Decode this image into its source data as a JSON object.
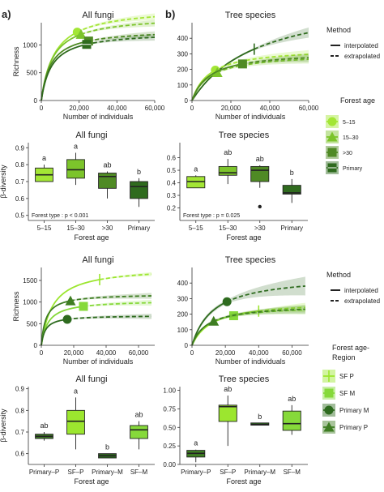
{
  "panel_labels": {
    "a": "a)",
    "b": "b)"
  },
  "legends": {
    "method": {
      "title": "Method",
      "items": [
        "interpolated",
        "extrapolated"
      ]
    },
    "forest_age": {
      "title": "Forest age",
      "items": [
        "5–15",
        "15–30",
        ">30",
        "Primary"
      ]
    },
    "forest_age_region": {
      "title": "Forest age-\nRegion",
      "items": [
        "SF P",
        "SF M",
        "Primary M",
        "Primary P"
      ]
    }
  },
  "colors": {
    "a5_15": "#a3e635",
    "a15_30": "#7cc42b",
    "a30": "#4f8a24",
    "aPrim": "#2f6b1e",
    "SFP": "#9ce62f",
    "SFM": "#86d93a",
    "PrimM": "#2e6b1f",
    "PrimP": "#3e7d22",
    "box_outline": "#222222"
  },
  "chart_data": [
    {
      "id": "rare-fungi-age",
      "type": "line",
      "title": "All fungi",
      "xlabel": "Number of individuals",
      "ylabel": "Richness",
      "xlim": [
        0,
        60000
      ],
      "ylim": [
        0,
        1400
      ],
      "xticks": [
        0,
        20000,
        40000,
        60000
      ],
      "xtick_labels": [
        "0",
        "20,000",
        "40,000",
        "60,000"
      ],
      "yticks": [
        0,
        500,
        1000
      ],
      "ytick_labels": [
        "0",
        "500",
        "1000"
      ],
      "series": [
        {
          "color": "a5_15",
          "N": 19000,
          "S": 1230,
          "A": 1330,
          "b": 7000,
          "xmax": 60000,
          "band": 40,
          "marker": "circle"
        },
        {
          "color": "a15_30",
          "N": 21000,
          "S": 1190,
          "A": 1260,
          "b": 6000,
          "xmax": 60000,
          "band": 40,
          "marker": "triangle"
        },
        {
          "color": "a30",
          "N": 25000,
          "S": 1070,
          "A": 1110,
          "b": 5000,
          "xmax": 60000,
          "band": 40,
          "marker": "square"
        },
        {
          "color": "aPrim",
          "N": 24000,
          "S": 1010,
          "A": 1060,
          "b": 5500,
          "xmax": 60000,
          "band": 40,
          "marker": "square-x"
        }
      ]
    },
    {
      "id": "rare-trees-age",
      "type": "line",
      "title": "Tree species",
      "xlabel": "Number of individuals",
      "ylabel": "",
      "xlim": [
        0,
        60000
      ],
      "ylim": [
        0,
        500
      ],
      "xticks": [
        0,
        20000,
        40000,
        60000
      ],
      "xtick_labels": [
        "0",
        "20,000",
        "40,000",
        "60,000"
      ],
      "yticks": [
        0,
        100,
        200,
        300,
        400
      ],
      "ytick_labels": [
        "0",
        "100",
        "200",
        "300",
        "400"
      ],
      "series": [
        {
          "color": "aPrim",
          "N": 32000,
          "S": 330,
          "A": 720,
          "b": 35000,
          "xmax": 60000,
          "band": 22,
          "marker": "vtick"
        },
        {
          "color": "a5_15",
          "N": 12000,
          "S": 195,
          "A": 300,
          "b": 9000,
          "xmax": 60000,
          "band": 18,
          "marker": "circle"
        },
        {
          "color": "a15_30",
          "N": 13000,
          "S": 180,
          "A": 260,
          "b": 9000,
          "xmax": 60000,
          "band": 18,
          "marker": "triangle"
        },
        {
          "color": "a30",
          "N": 26000,
          "S": 235,
          "A": 310,
          "b": 9000,
          "xmax": 60000,
          "band": 18,
          "marker": "square"
        }
      ]
    },
    {
      "id": "beta-fungi-age",
      "type": "box",
      "title": "All fungi",
      "xlabel": "Forest age",
      "ylabel": "β-diversity",
      "ylim": [
        0.47,
        0.93
      ],
      "yticks": [
        0.5,
        0.6,
        0.7,
        0.8,
        0.9
      ],
      "ytick_labels": [
        "0.5",
        "0.6",
        "0.7",
        "0.8",
        "0.9"
      ],
      "annotation": "Forest type : p < 0.001",
      "boxes": [
        {
          "label": "5–15",
          "color": "a5_15",
          "letter": "a",
          "min": 0.7,
          "q1": 0.7,
          "med": 0.74,
          "q3": 0.78,
          "max": 0.8
        },
        {
          "label": "15–30",
          "color": "a15_30",
          "letter": "a",
          "min": 0.68,
          "q1": 0.72,
          "med": 0.77,
          "q3": 0.83,
          "max": 0.87
        },
        {
          "label": ">30",
          "color": "a30",
          "letter": "ab",
          "min": 0.6,
          "q1": 0.66,
          "med": 0.73,
          "q3": 0.75,
          "max": 0.76
        },
        {
          "label": "Primary",
          "color": "aPrim",
          "letter": "b",
          "min": 0.55,
          "q1": 0.6,
          "med": 0.67,
          "q3": 0.7,
          "max": 0.72
        }
      ]
    },
    {
      "id": "beta-trees-age",
      "type": "box",
      "title": "Tree species",
      "xlabel": "Forest age",
      "ylabel": "",
      "ylim": [
        0.1,
        0.72
      ],
      "yticks": [
        0.2,
        0.3,
        0.4,
        0.5,
        0.6
      ],
      "ytick_labels": [
        "0.2",
        "0.3",
        "0.4",
        "0.5",
        "0.6"
      ],
      "annotation": "Forest type : p = 0.025",
      "boxes": [
        {
          "label": "5–15",
          "color": "a5_15",
          "letter": "a",
          "min": 0.36,
          "q1": 0.36,
          "med": 0.41,
          "q3": 0.45,
          "max": 0.46
        },
        {
          "label": "15–30",
          "color": "a15_30",
          "letter": "ab",
          "min": 0.39,
          "q1": 0.46,
          "med": 0.48,
          "q3": 0.53,
          "max": 0.59
        },
        {
          "label": ">30",
          "color": "a30",
          "letter": "ab",
          "min": 0.36,
          "q1": 0.41,
          "med": 0.5,
          "q3": 0.53,
          "max": 0.54,
          "outliers": [
            0.21
          ]
        },
        {
          "label": "Primary",
          "color": "aPrim",
          "letter": "b",
          "min": 0.24,
          "q1": 0.31,
          "med": 0.32,
          "q3": 0.38,
          "max": 0.43
        }
      ]
    },
    {
      "id": "rare-fungi-region",
      "type": "line",
      "title": "All fungi",
      "xlabel": "Number of individuals",
      "ylabel": "Richness",
      "xlim": [
        0,
        70000
      ],
      "ylim": [
        0,
        1800
      ],
      "xticks": [
        0,
        20000,
        40000,
        60000
      ],
      "xtick_labels": [
        "0",
        "20,000",
        "40,000",
        "60,000"
      ],
      "yticks": [
        0,
        500,
        1000,
        1500
      ],
      "ytick_labels": [
        "0",
        "500",
        "1000",
        "1500"
      ],
      "series": [
        {
          "color": "SFP",
          "N": 36000,
          "S": 1520,
          "A": 1700,
          "b": 7000,
          "xmax": 68000,
          "band": 30,
          "marker": "vtick"
        },
        {
          "color": "PrimP",
          "N": 18000,
          "S": 1030,
          "A": 1080,
          "b": 2800,
          "xmax": 68000,
          "band": 45,
          "marker": "triangle"
        },
        {
          "color": "SFM",
          "N": 26000,
          "S": 900,
          "A": 960,
          "b": 4200,
          "xmax": 68000,
          "band": 45,
          "marker": "square"
        },
        {
          "color": "PrimM",
          "N": 16000,
          "S": 600,
          "A": 630,
          "b": 2500,
          "xmax": 68000,
          "band": 40,
          "marker": "circle"
        }
      ]
    },
    {
      "id": "rare-trees-region",
      "type": "line",
      "title": "Tree species",
      "xlabel": "Number of individuals",
      "ylabel": "",
      "xlim": [
        0,
        70000
      ],
      "ylim": [
        0,
        500
      ],
      "xticks": [
        0,
        20000,
        40000,
        60000
      ],
      "xtick_labels": [
        "0",
        "20,000",
        "40,000",
        "60,000"
      ],
      "yticks": [
        0,
        100,
        200,
        300,
        400
      ],
      "ytick_labels": [
        "0",
        "100",
        "200",
        "300",
        "400"
      ],
      "series": [
        {
          "color": "PrimM",
          "N": 21000,
          "S": 280,
          "A": 430,
          "b": 13000,
          "xmax": 68000,
          "band": 40,
          "marker": "circle"
        },
        {
          "color": "SFP",
          "N": 40000,
          "S": 220,
          "A": 280,
          "b": 12000,
          "xmax": 68000,
          "band": 20,
          "marker": "vtick"
        },
        {
          "color": "SFM",
          "N": 25000,
          "S": 190,
          "A": 250,
          "b": 9000,
          "xmax": 68000,
          "band": 20,
          "marker": "square"
        },
        {
          "color": "PrimP",
          "N": 13000,
          "S": 155,
          "A": 240,
          "b": 9000,
          "xmax": 68000,
          "band": 18,
          "marker": "triangle"
        }
      ]
    },
    {
      "id": "beta-fungi-region",
      "type": "box",
      "title": "All fungi",
      "xlabel": "Forest age",
      "ylabel": "β-diversity",
      "ylim": [
        0.55,
        0.91
      ],
      "yticks": [
        0.6,
        0.7,
        0.8,
        0.9
      ],
      "ytick_labels": [
        "0.6",
        "0.7",
        "0.8",
        "0.9"
      ],
      "annotation": "",
      "boxes": [
        {
          "label": "Primary–P",
          "color": "PrimP",
          "letter": "ab",
          "min": 0.66,
          "q1": 0.67,
          "med": 0.68,
          "q3": 0.69,
          "max": 0.7
        },
        {
          "label": "SF–P",
          "color": "SFP",
          "letter": "a",
          "min": 0.62,
          "q1": 0.69,
          "med": 0.75,
          "q3": 0.8,
          "max": 0.86
        },
        {
          "label": "Primary–M",
          "color": "PrimM",
          "letter": "b",
          "min": 0.58,
          "q1": 0.58,
          "med": 0.59,
          "q3": 0.6,
          "max": 0.6
        },
        {
          "label": "SF–M",
          "color": "SFM",
          "letter": "ab",
          "min": 0.62,
          "q1": 0.67,
          "med": 0.71,
          "q3": 0.73,
          "max": 0.75
        }
      ]
    },
    {
      "id": "beta-trees-region",
      "type": "box",
      "title": "Tree species",
      "xlabel": "Forest age",
      "ylabel": "",
      "ylim": [
        0.0,
        1.05
      ],
      "yticks": [
        0.0,
        0.25,
        0.5,
        0.75,
        1.0
      ],
      "ytick_labels": [
        "0.00",
        "0.25",
        "0.50",
        "0.75",
        "1.00"
      ],
      "annotation": "",
      "boxes": [
        {
          "label": "Primary–P",
          "color": "PrimP",
          "letter": "a",
          "min": 0.03,
          "q1": 0.1,
          "med": 0.15,
          "q3": 0.19,
          "max": 0.2
        },
        {
          "label": "SF–P",
          "color": "SFP",
          "letter": "ab",
          "min": 0.25,
          "q1": 0.58,
          "med": 0.78,
          "q3": 0.8,
          "max": 0.93
        },
        {
          "label": "Primary–M",
          "color": "PrimM",
          "letter": "b",
          "min": 0.53,
          "q1": 0.53,
          "med": 0.54,
          "q3": 0.56,
          "max": 0.56
        },
        {
          "label": "SF–M",
          "color": "SFM",
          "letter": "ab",
          "min": 0.4,
          "q1": 0.46,
          "med": 0.55,
          "q3": 0.72,
          "max": 0.8
        }
      ]
    }
  ]
}
